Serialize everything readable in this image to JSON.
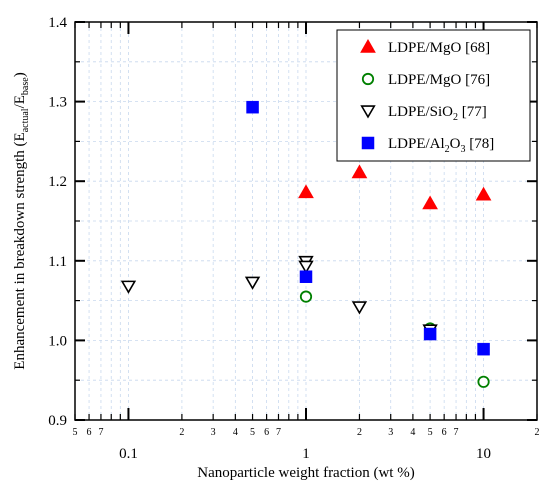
{
  "chart_data": {
    "type": "scatter",
    "xlabel": "Nanoparticle weight fraction (wt %)",
    "ylabel": "Enhancement in breakdown strength (E",
    "ylabel_sub1": "actual",
    "ylabel_mid": "/E",
    "ylabel_sub2": "base",
    "ylabel_end": ")",
    "xscale": "log",
    "xlim": [
      0.05,
      20
    ],
    "ylim": [
      0.9,
      1.4
    ],
    "grid": true,
    "legend_position": "top-right",
    "x_major_ticks": [
      0.1,
      1,
      10
    ],
    "x_major_labels": [
      "0.1",
      "1",
      "10"
    ],
    "x_minor_ticks": [
      0.05,
      0.06,
      0.07,
      0.2,
      0.3,
      0.4,
      0.5,
      0.6,
      0.7,
      2,
      3,
      4,
      5,
      6,
      7,
      20
    ],
    "x_minor_labels": [
      "5",
      "6",
      "7",
      "2",
      "3",
      "4",
      "5",
      "6",
      "7",
      "2",
      "3",
      "4",
      "5",
      "6",
      "7",
      "2"
    ],
    "y_ticks": [
      0.9,
      1.0,
      1.1,
      1.2,
      1.3,
      1.4
    ],
    "y_tick_labels": [
      "0.9",
      "1.0",
      "1.1",
      "1.2",
      "1.3",
      "1.4"
    ],
    "series": [
      {
        "name": "LDPE/MgO [68]",
        "label_main": "LDPE/MgO [68]",
        "label_sub": "",
        "label_end": "",
        "marker": "triangle-up-filled",
        "color": "#ff0000",
        "x": [
          1,
          2,
          5,
          10
        ],
        "y": [
          1.186,
          1.211,
          1.172,
          1.183
        ]
      },
      {
        "name": "LDPE/MgO [76]",
        "label_main": "LDPE/MgO [76]",
        "label_sub": "",
        "label_end": "",
        "marker": "circle-open",
        "color": "#008000",
        "x": [
          1,
          5,
          10
        ],
        "y": [
          1.055,
          1.015,
          0.948
        ]
      },
      {
        "name": "LDPE/SiO2 [77]",
        "label_main": "LDPE/SiO",
        "label_sub": "2",
        "label_end": " [77]",
        "marker": "triangle-down-open",
        "color": "#000000",
        "x": [
          0.1,
          0.5,
          1,
          1,
          2,
          5
        ],
        "y": [
          1.068,
          1.073,
          1.099,
          1.093,
          1.042,
          1.013
        ]
      },
      {
        "name": "LDPE/Al2O3 [78]",
        "label_main": "LDPE/Al",
        "label_sub": "2",
        "label_mid": "O",
        "label_sub2": "3",
        "label_end": " [78]",
        "marker": "square-filled",
        "color": "#0000ff",
        "x": [
          0.5,
          1,
          5,
          10
        ],
        "y": [
          1.293,
          1.08,
          1.008,
          0.989
        ]
      }
    ]
  }
}
